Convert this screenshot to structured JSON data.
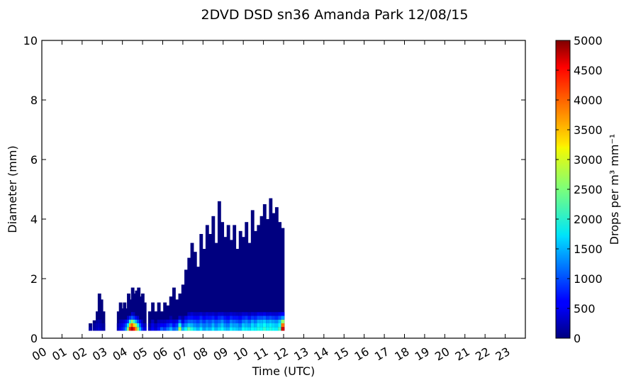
{
  "chart_data": {
    "type": "heatmap",
    "title": "2DVD DSD sn36 Amanda Park 12/08/15",
    "xlabel": "Time (UTC)",
    "ylabel": "Diameter (mm)",
    "xlim": [
      0,
      24
    ],
    "ylim": [
      0,
      10
    ],
    "x_ticks": [
      "00",
      "01",
      "02",
      "03",
      "04",
      "05",
      "06",
      "07",
      "08",
      "09",
      "10",
      "11",
      "12",
      "13",
      "14",
      "15",
      "16",
      "17",
      "18",
      "19",
      "20",
      "21",
      "22",
      "23"
    ],
    "y_ticks": [
      0,
      2,
      4,
      6,
      8,
      10
    ],
    "colorbar": {
      "label": "Drops per m³ mm⁻¹",
      "range": [
        0,
        5000
      ],
      "ticks": [
        0,
        500,
        1000,
        1500,
        2000,
        2500,
        3000,
        3500,
        4000,
        4500,
        5000
      ],
      "colormap": "jet"
    },
    "diameter_bins_mm": [
      0.25,
      0.375,
      0.5,
      0.625,
      0.75,
      0.875,
      1.0
    ],
    "columns": [
      {
        "t": 2.4,
        "dmax": 0.5,
        "low": [
          200
        ]
      },
      {
        "t": 2.6,
        "dmax": 0.6,
        "low": [
          200,
          150
        ]
      },
      {
        "t": 2.75,
        "dmax": 0.9,
        "low": [
          300,
          250,
          150
        ]
      },
      {
        "t": 2.85,
        "dmax": 1.5,
        "low": [
          400,
          300,
          200
        ]
      },
      {
        "t": 2.95,
        "dmax": 1.3,
        "low": [
          300,
          250,
          150
        ]
      },
      {
        "t": 3.05,
        "dmax": 0.9,
        "low": [
          200,
          150
        ]
      },
      {
        "t": 3.8,
        "dmax": 0.9,
        "low": [
          300,
          200
        ]
      },
      {
        "t": 3.9,
        "dmax": 1.2,
        "low": [
          500,
          400,
          250
        ]
      },
      {
        "t": 4.0,
        "dmax": 1.0,
        "low": [
          700,
          500,
          300
        ]
      },
      {
        "t": 4.1,
        "dmax": 1.2,
        "low": [
          900,
          700,
          400
        ]
      },
      {
        "t": 4.2,
        "dmax": 1.0,
        "low": [
          1400,
          1000,
          600
        ]
      },
      {
        "t": 4.3,
        "dmax": 1.5,
        "low": [
          2600,
          1800,
          900,
          400
        ]
      },
      {
        "t": 4.4,
        "dmax": 1.3,
        "low": [
          4200,
          3400,
          2000,
          800
        ]
      },
      {
        "t": 4.5,
        "dmax": 1.7,
        "low": [
          4700,
          3900,
          2600,
          1100,
          400
        ]
      },
      {
        "t": 4.6,
        "dmax": 1.5,
        "low": [
          4300,
          3300,
          2100,
          900,
          300
        ]
      },
      {
        "t": 4.7,
        "dmax": 1.6,
        "low": [
          3600,
          2700,
          1500,
          600
        ]
      },
      {
        "t": 4.8,
        "dmax": 1.7,
        "low": [
          2600,
          1900,
          1000,
          400
        ]
      },
      {
        "t": 4.9,
        "dmax": 1.4,
        "low": [
          1600,
          1100,
          600
        ]
      },
      {
        "t": 5.0,
        "dmax": 1.5,
        "low": [
          900,
          600,
          300
        ]
      },
      {
        "t": 5.1,
        "dmax": 1.2,
        "low": [
          500,
          300
        ]
      },
      {
        "t": 5.35,
        "dmax": 0.9,
        "low": [
          300,
          200
        ]
      },
      {
        "t": 5.5,
        "dmax": 1.2,
        "low": [
          600,
          500,
          300
        ]
      },
      {
        "t": 5.65,
        "dmax": 0.9,
        "low": [
          400,
          300
        ]
      },
      {
        "t": 5.8,
        "dmax": 1.2,
        "low": [
          700,
          500,
          250
        ]
      },
      {
        "t": 5.95,
        "dmax": 0.9,
        "low": [
          1100,
          600,
          300
        ]
      },
      {
        "t": 6.1,
        "dmax": 1.2,
        "low": [
          900,
          600,
          300
        ]
      },
      {
        "t": 6.25,
        "dmax": 1.1,
        "low": [
          1200,
          800,
          400
        ]
      },
      {
        "t": 6.4,
        "dmax": 1.4,
        "low": [
          1500,
          1000,
          500,
          200
        ]
      },
      {
        "t": 6.55,
        "dmax": 1.7,
        "low": [
          1100,
          700,
          400
        ]
      },
      {
        "t": 6.7,
        "dmax": 1.3,
        "low": [
          1300,
          900,
          500
        ]
      },
      {
        "t": 6.85,
        "dmax": 1.5,
        "low": [
          2700,
          2000,
          1100,
          400
        ]
      },
      {
        "t": 7.0,
        "dmax": 1.8,
        "low": [
          1500,
          1000,
          500,
          200
        ]
      },
      {
        "t": 7.15,
        "dmax": 2.3,
        "low": [
          1900,
          1300,
          900,
          500
        ]
      },
      {
        "t": 7.3,
        "dmax": 2.7,
        "low": [
          2300,
          1600,
          1100,
          700,
          300
        ]
      },
      {
        "t": 7.45,
        "dmax": 3.2,
        "low": [
          2000,
          1500,
          1100,
          700,
          400
        ]
      },
      {
        "t": 7.6,
        "dmax": 2.9,
        "low": [
          1700,
          1300,
          1000,
          600,
          300
        ]
      },
      {
        "t": 7.75,
        "dmax": 2.4,
        "low": [
          1500,
          1200,
          900,
          600,
          300
        ]
      },
      {
        "t": 7.9,
        "dmax": 3.5,
        "low": [
          1800,
          1400,
          1100,
          800,
          400
        ]
      },
      {
        "t": 8.05,
        "dmax": 3.0,
        "low": [
          1400,
          1200,
          900,
          600,
          300
        ]
      },
      {
        "t": 8.2,
        "dmax": 3.8,
        "low": [
          1600,
          1300,
          1100,
          700,
          400
        ]
      },
      {
        "t": 8.35,
        "dmax": 3.5,
        "low": [
          1500,
          1200,
          1000,
          700,
          350
        ]
      },
      {
        "t": 8.5,
        "dmax": 4.1,
        "low": [
          1800,
          1500,
          1200,
          800,
          400
        ]
      },
      {
        "t": 8.65,
        "dmax": 3.2,
        "low": [
          1500,
          1200,
          1000,
          600,
          300
        ]
      },
      {
        "t": 8.8,
        "dmax": 4.6,
        "low": [
          1700,
          1400,
          1100,
          800,
          400
        ]
      },
      {
        "t": 8.95,
        "dmax": 3.9,
        "low": [
          1900,
          1600,
          1300,
          900,
          400
        ]
      },
      {
        "t": 9.1,
        "dmax": 3.4,
        "low": [
          1600,
          1300,
          1000,
          700,
          300
        ]
      },
      {
        "t": 9.25,
        "dmax": 3.8,
        "low": [
          1500,
          1200,
          900,
          600,
          300
        ]
      },
      {
        "t": 9.4,
        "dmax": 3.3,
        "low": [
          1800,
          1500,
          1200,
          800,
          400
        ]
      },
      {
        "t": 9.55,
        "dmax": 3.8,
        "low": [
          1700,
          1400,
          1100,
          700,
          350
        ]
      },
      {
        "t": 9.7,
        "dmax": 3.0,
        "low": [
          1600,
          1400,
          1000,
          700,
          300
        ]
      },
      {
        "t": 9.85,
        "dmax": 3.6,
        "low": [
          1500,
          1200,
          900,
          600,
          300
        ]
      },
      {
        "t": 10.0,
        "dmax": 3.4,
        "low": [
          1900,
          1600,
          1200,
          800,
          400
        ]
      },
      {
        "t": 10.15,
        "dmax": 3.9,
        "low": [
          1800,
          1500,
          1300,
          900,
          400
        ]
      },
      {
        "t": 10.3,
        "dmax": 3.2,
        "low": [
          1700,
          1400,
          1100,
          700,
          300
        ]
      },
      {
        "t": 10.45,
        "dmax": 4.3,
        "low": [
          1900,
          1700,
          1400,
          900,
          400
        ]
      },
      {
        "t": 10.6,
        "dmax": 3.6,
        "low": [
          1800,
          1500,
          1200,
          800,
          350
        ]
      },
      {
        "t": 10.75,
        "dmax": 3.8,
        "low": [
          2000,
          1800,
          1500,
          1000,
          500
        ]
      },
      {
        "t": 10.9,
        "dmax": 4.1,
        "low": [
          1900,
          1700,
          1500,
          1000,
          450
        ]
      },
      {
        "t": 11.05,
        "dmax": 4.5,
        "low": [
          2100,
          1900,
          1600,
          1100,
          500
        ]
      },
      {
        "t": 11.2,
        "dmax": 4.0,
        "low": [
          1900,
          1700,
          1400,
          900,
          400
        ]
      },
      {
        "t": 11.35,
        "dmax": 4.7,
        "low": [
          2000,
          1800,
          1500,
          1000,
          450
        ]
      },
      {
        "t": 11.5,
        "dmax": 4.2,
        "low": [
          1900,
          1700,
          1400,
          900,
          400
        ]
      },
      {
        "t": 11.65,
        "dmax": 4.4,
        "low": [
          1800,
          1600,
          1300,
          800,
          400
        ]
      },
      {
        "t": 11.8,
        "dmax": 3.9,
        "low": [
          2200,
          1900,
          1600,
          1000,
          500
        ]
      },
      {
        "t": 11.95,
        "dmax": 3.7,
        "low": [
          4600,
          3800,
          2600,
          1400,
          600
        ]
      }
    ]
  }
}
